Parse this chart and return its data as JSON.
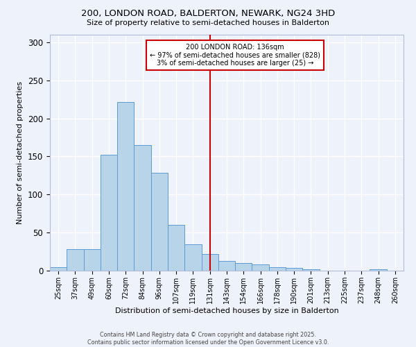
{
  "title": "200, LONDON ROAD, BALDERTON, NEWARK, NG24 3HD",
  "subtitle": "Size of property relative to semi-detached houses in Balderton",
  "xlabel": "Distribution of semi-detached houses by size in Balderton",
  "ylabel": "Number of semi-detached properties",
  "footer_line1": "Contains HM Land Registry data © Crown copyright and database right 2025.",
  "footer_line2": "Contains public sector information licensed under the Open Government Licence v3.0.",
  "categories": [
    "25sqm",
    "37sqm",
    "49sqm",
    "60sqm",
    "72sqm",
    "84sqm",
    "96sqm",
    "107sqm",
    "119sqm",
    "131sqm",
    "143sqm",
    "154sqm",
    "166sqm",
    "178sqm",
    "190sqm",
    "201sqm",
    "213sqm",
    "225sqm",
    "237sqm",
    "248sqm",
    "260sqm"
  ],
  "values": [
    5,
    28,
    28,
    152,
    222,
    165,
    129,
    60,
    35,
    22,
    13,
    10,
    8,
    5,
    4,
    2,
    0,
    0,
    0,
    2,
    0
  ],
  "bar_color": "#b8d4e8",
  "bar_edge_color": "#5b9bd5",
  "highlight_index": 9,
  "highlight_label": "200 LONDON ROAD: 136sqm",
  "highlight_smaller": "← 97% of semi-detached houses are smaller (828)",
  "highlight_larger": "3% of semi-detached houses are larger (25) →",
  "vline_color": "#cc0000",
  "annotation_box_color": "#cc0000",
  "background_color": "#eef2fb",
  "grid_color": "#ffffff",
  "ylim": [
    0,
    310
  ],
  "yticks": [
    0,
    50,
    100,
    150,
    200,
    250,
    300
  ]
}
